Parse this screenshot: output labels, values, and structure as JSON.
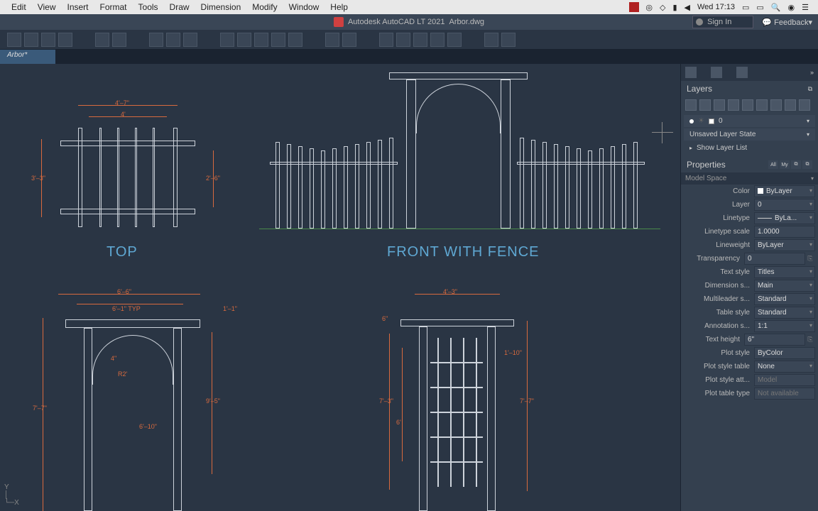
{
  "menubar": {
    "items": [
      "Edit",
      "View",
      "Insert",
      "Format",
      "Tools",
      "Draw",
      "Dimension",
      "Modify",
      "Window",
      "Help"
    ],
    "clock": "Wed 17:13"
  },
  "titlebar": {
    "app": "Autodesk AutoCAD LT 2021",
    "file": "Arbor.dwg",
    "signin": "Sign In",
    "feedback": "Feedback"
  },
  "doctab": "Arbor*",
  "labels": {
    "top": "TOP",
    "front_fence": "FRONT WITH FENCE"
  },
  "dims": {
    "top_w1": "4'–7\"",
    "top_w2": "4'",
    "top_h1": "3'–3\"",
    "top_h2": "2'–6\"",
    "bl_w1": "6'–6\"",
    "bl_w2": "6'–1\" TYP",
    "bl_ext": "1'–1\"",
    "bl_d": "4\"",
    "bl_r": "R2'",
    "bl_h1": "7'–7\"",
    "bl_h2": "9'–5\"",
    "bl_h3": "6'–10\"",
    "br_w1": "4'–3\"",
    "br_w2": "6\"",
    "br_h1": "7'–3\"",
    "br_h2": "6'",
    "br_h3": "7'–7\"",
    "br_ext": "1'–10\""
  },
  "panel": {
    "layers_title": "Layers",
    "layer_current": "0",
    "layer_state": "Unsaved Layer State",
    "show_list": "Show Layer List",
    "properties_title": "Properties",
    "context": "Model Space",
    "tabs": {
      "all": "All",
      "my": "My"
    },
    "props": [
      {
        "k": "Color",
        "v": "ByLayer",
        "dd": true,
        "sw": true
      },
      {
        "k": "Layer",
        "v": "0",
        "dd": true
      },
      {
        "k": "Linetype",
        "v": "ByLa...",
        "dd": true,
        "line": true
      },
      {
        "k": "Linetype scale",
        "v": "1.0000"
      },
      {
        "k": "Lineweight",
        "v": "ByLayer",
        "dd": true
      },
      {
        "k": "Transparency",
        "v": "0",
        "slider": true
      },
      {
        "k": "Text style",
        "v": "Titles",
        "dd": true
      },
      {
        "k": "Dimension s...",
        "v": "Main",
        "dd": true
      },
      {
        "k": "Multileader s...",
        "v": "Standard",
        "dd": true
      },
      {
        "k": "Table style",
        "v": "Standard",
        "dd": true
      },
      {
        "k": "Annotation s...",
        "v": "1:1",
        "dd": true
      },
      {
        "k": "Text height",
        "v": "6\"",
        "extra": true
      },
      {
        "k": "Plot style",
        "v": "ByColor"
      },
      {
        "k": "Plot style table",
        "v": "None",
        "dd": true
      },
      {
        "k": "Plot style att...",
        "v": "Model",
        "dim": true
      },
      {
        "k": "Plot table type",
        "v": "Not available",
        "dim": true
      }
    ]
  },
  "colors": {
    "bg": "#2a3544",
    "dim": "#d86a3e",
    "obj": "#cdd3db",
    "label": "#5fa8d3",
    "ground": "#4a8a4a"
  }
}
